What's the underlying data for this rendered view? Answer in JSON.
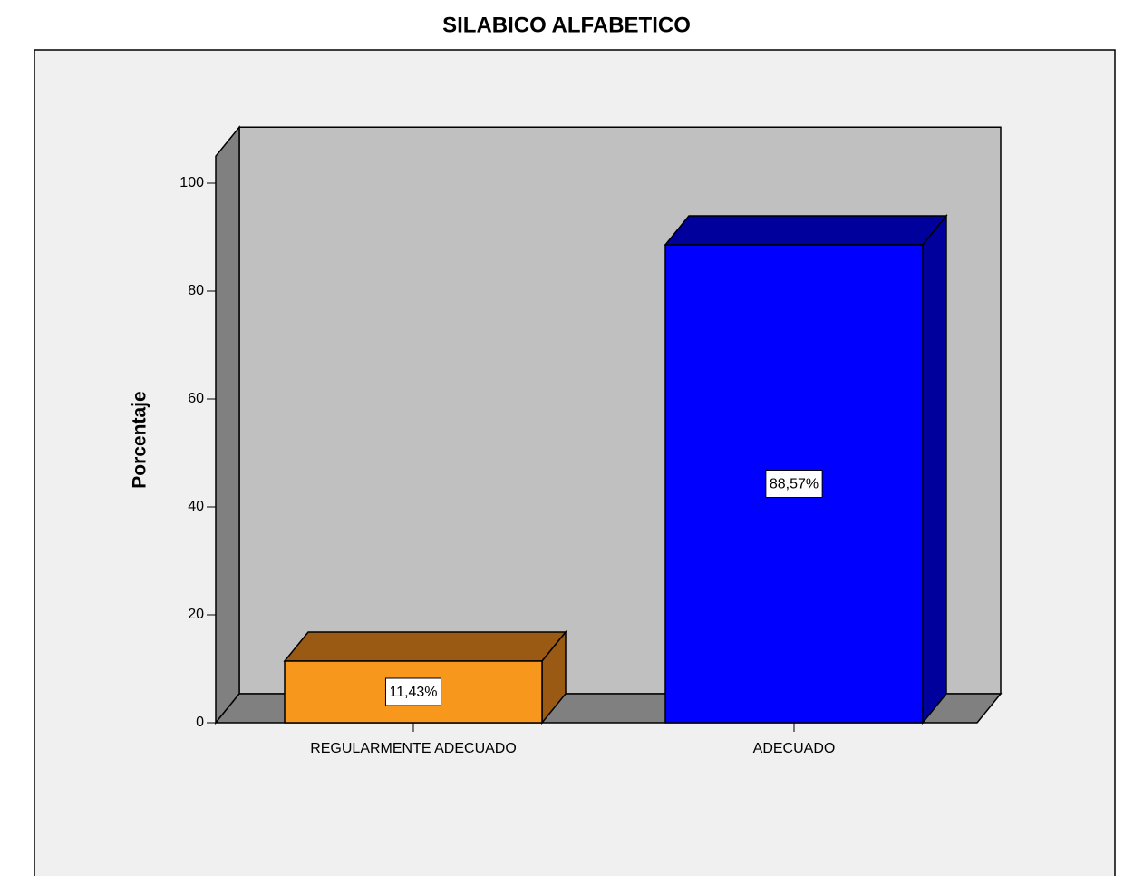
{
  "chart_data": {
    "type": "bar3d",
    "title": "SILABICO ALFABETICO",
    "y_label": "Porcentaje",
    "categories": [
      "REGULARMENTE ADECUADO",
      "ADECUADO"
    ],
    "values": [
      11.43,
      88.57
    ],
    "value_labels": [
      "11,43%",
      "88,57%"
    ],
    "colors": [
      "#f7981d",
      "#0000ff"
    ],
    "side_colors": [
      "#9b5a13",
      "#00009c"
    ],
    "ylim": [
      0,
      105
    ],
    "yticks": [
      0,
      20,
      40,
      60,
      80,
      100
    ],
    "grid": false
  }
}
